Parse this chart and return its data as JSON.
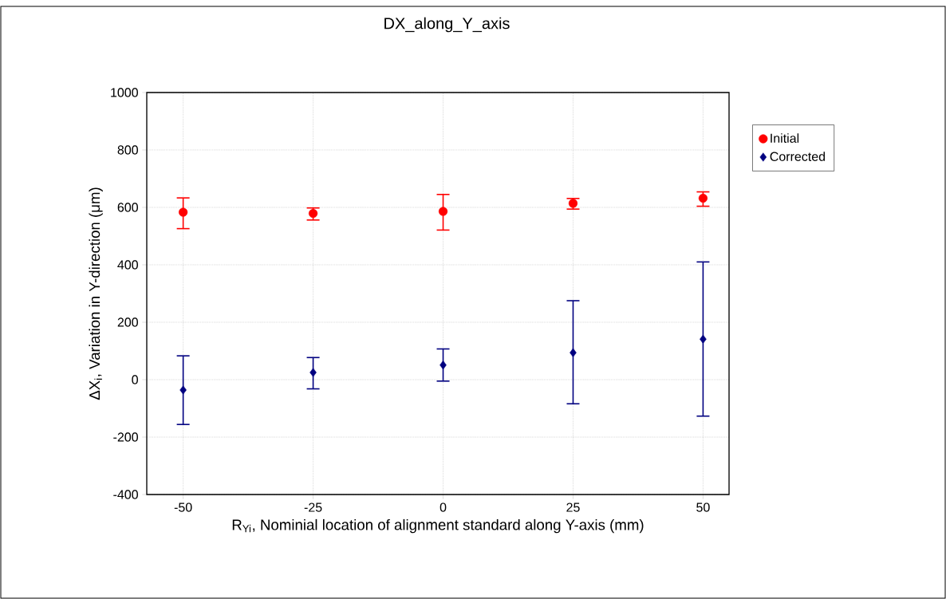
{
  "chart_data": {
    "type": "scatter",
    "title": "DX_along_Y_axis",
    "xlabel": "R$_{Yi}$, Nominial location of alignment standard along Y-axis (mm)",
    "ylabel": "ΔX$_{i}$, Variation in Y-direction (μm)",
    "x": [
      -50,
      -25,
      0,
      25,
      50
    ],
    "series": [
      {
        "name": "Initial",
        "color": "#ff0000",
        "marker": "circle",
        "values": [
          583,
          579,
          586,
          614,
          632
        ],
        "errors": [
          [
            526,
            633
          ],
          [
            556,
            598
          ],
          [
            521,
            645
          ],
          [
            594,
            631
          ],
          [
            604,
            654
          ]
        ]
      },
      {
        "name": "Corrected",
        "color": "#000080",
        "marker": "diamond",
        "values": [
          -36,
          25,
          51,
          94,
          141
        ],
        "errors": [
          [
            -156,
            83
          ],
          [
            -32,
            77
          ],
          [
            -5,
            107
          ],
          [
            -84,
            275
          ],
          [
            -127,
            410
          ]
        ]
      }
    ],
    "xlim": [
      -57,
      55
    ],
    "xticks": [
      -50,
      -25,
      0,
      25,
      50
    ],
    "ylim": [
      -400,
      1000
    ],
    "yticks": [
      -400,
      -200,
      0,
      200,
      400,
      600,
      800,
      1000
    ],
    "grid": true,
    "legend": "top right"
  }
}
